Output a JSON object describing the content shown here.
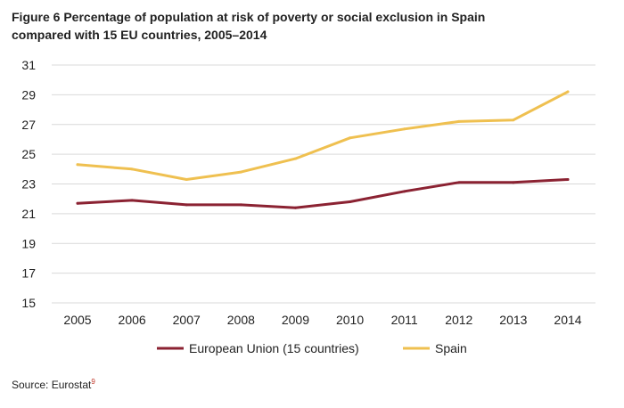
{
  "figure": {
    "title_line1": "Figure 6 Percentage of population at risk of poverty or social exclusion in Spain",
    "title_line2": "compared with 15 EU countries, 2005–2014",
    "source_text": "Source: Eurostat",
    "source_note": "9"
  },
  "chart_data": {
    "type": "line",
    "title": "Figure 6 Percentage of population at risk of poverty or social exclusion in Spain compared with 15 EU countries, 2005–2014",
    "xlabel": "",
    "ylabel": "",
    "x": [
      "2005",
      "2006",
      "2007",
      "2008",
      "2009",
      "2010",
      "2011",
      "2012",
      "2013",
      "2014"
    ],
    "ylim": [
      15,
      31
    ],
    "yticks": [
      "15",
      "17",
      "19",
      "21",
      "23",
      "25",
      "27",
      "29",
      "31"
    ],
    "grid": true,
    "legend_position": "bottom",
    "series": [
      {
        "name": "European Union (15 countries)",
        "color": "#8b2232",
        "values": [
          21.7,
          21.9,
          21.6,
          21.6,
          21.4,
          21.8,
          22.5,
          23.1,
          23.1,
          23.3
        ]
      },
      {
        "name": "Spain",
        "color": "#efc050",
        "values": [
          24.3,
          24.0,
          23.3,
          23.8,
          24.7,
          26.1,
          26.7,
          27.2,
          27.3,
          29.2
        ]
      }
    ]
  }
}
